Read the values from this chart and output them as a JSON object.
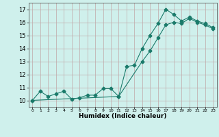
{
  "line1_x": [
    0,
    1,
    2,
    3,
    4,
    5,
    6,
    7,
    8,
    9,
    10,
    11,
    12,
    13,
    14,
    15,
    16,
    17,
    18,
    19,
    20,
    21,
    22,
    23
  ],
  "line1_y": [
    10.0,
    10.7,
    10.3,
    10.5,
    10.7,
    10.1,
    10.2,
    10.4,
    10.4,
    10.9,
    10.9,
    10.3,
    12.6,
    12.7,
    14.0,
    15.0,
    15.9,
    17.0,
    16.6,
    16.1,
    16.4,
    16.1,
    15.9,
    15.6
  ],
  "line2_x": [
    0,
    11,
    14,
    15,
    16,
    17,
    18,
    19,
    20,
    21,
    22,
    23
  ],
  "line2_y": [
    10.0,
    10.3,
    13.0,
    13.8,
    14.8,
    15.8,
    16.0,
    15.9,
    16.3,
    16.0,
    15.8,
    15.5
  ],
  "line_color": "#1a7a6a",
  "bg_color": "#cff0ec",
  "grid_color": "#c0a8a8",
  "xlabel": "Humidex (Indice chaleur)",
  "xlim": [
    -0.5,
    23.5
  ],
  "ylim": [
    9.5,
    17.5
  ],
  "yticks": [
    10,
    11,
    12,
    13,
    14,
    15,
    16,
    17
  ],
  "xtick_labels": [
    "0",
    "1",
    "2",
    "3",
    "4",
    "5",
    "6",
    "7",
    "8",
    "9",
    "10",
    "11",
    "12",
    "13",
    "14",
    "15",
    "16",
    "17",
    "18",
    "19",
    "20",
    "21",
    "22",
    "23"
  ],
  "marker": "D",
  "marker_size": 2.5,
  "linewidth": 0.8
}
